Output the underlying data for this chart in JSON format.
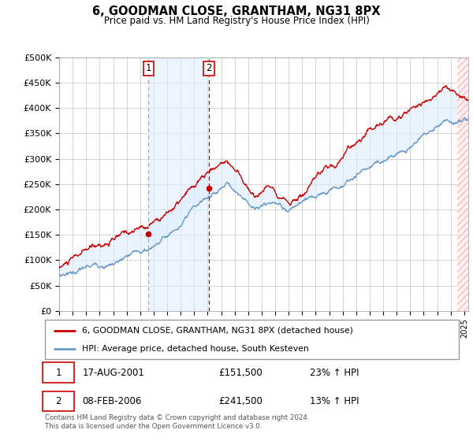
{
  "title": "6, GOODMAN CLOSE, GRANTHAM, NG31 8PX",
  "subtitle": "Price paid vs. HM Land Registry's House Price Index (HPI)",
  "ylabel_ticks": [
    "£0",
    "£50K",
    "£100K",
    "£150K",
    "£200K",
    "£250K",
    "£300K",
    "£350K",
    "£400K",
    "£450K",
    "£500K"
  ],
  "ytick_vals": [
    0,
    50000,
    100000,
    150000,
    200000,
    250000,
    300000,
    350000,
    400000,
    450000,
    500000
  ],
  "ylim": [
    0,
    500000
  ],
  "xlim_start": 1995.0,
  "xlim_end": 2025.3,
  "sale1_date": 2001.62,
  "sale1_price": 151500,
  "sale2_date": 2006.1,
  "sale2_price": 241500,
  "red_line_color": "#cc0000",
  "blue_line_color": "#6699cc",
  "shade_color": "#ddeeff",
  "grid_color": "#cccccc",
  "sale1_vline_color": "#aaaaaa",
  "sale2_vline_color": "#cc0000",
  "legend_label_red": "6, GOODMAN CLOSE, GRANTHAM, NG31 8PX (detached house)",
  "legend_label_blue": "HPI: Average price, detached house, South Kesteven",
  "footnote": "Contains HM Land Registry data © Crown copyright and database right 2024.\nThis data is licensed under the Open Government Licence v3.0.",
  "row1": [
    "1",
    "17-AUG-2001",
    "£151,500",
    "23% ↑ HPI"
  ],
  "row2": [
    "2",
    "08-FEB-2006",
    "£241,500",
    "13% ↑ HPI"
  ]
}
